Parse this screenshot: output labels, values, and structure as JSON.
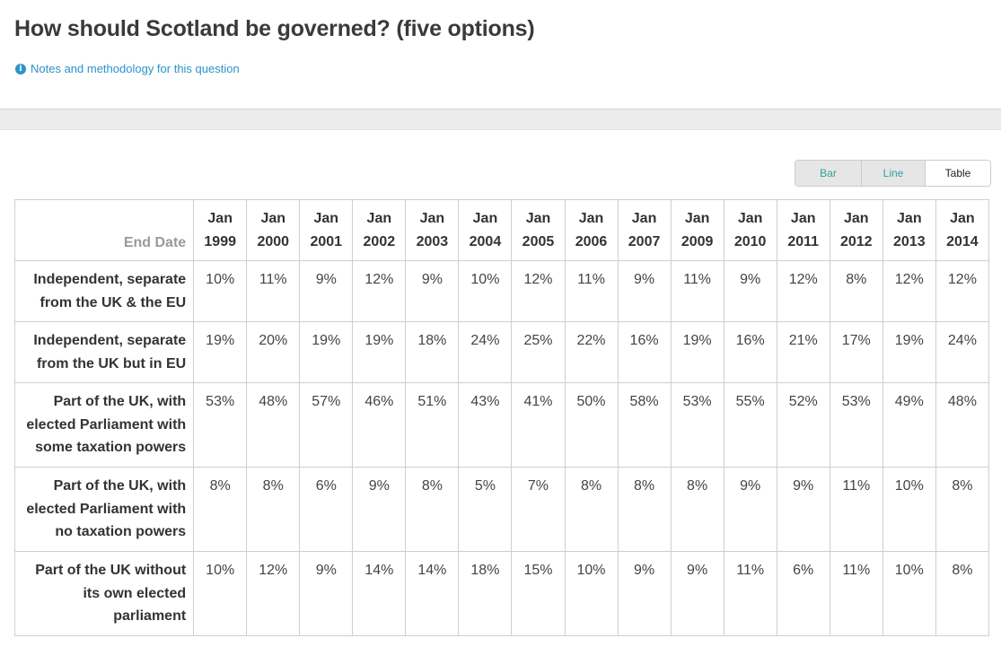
{
  "header": {
    "title": "How should Scotland be governed? (five options)",
    "notes_link": "Notes and methodology for this question",
    "notes_icon": "info-icon"
  },
  "view_toggle": {
    "options": [
      "Bar",
      "Line",
      "Table"
    ],
    "selected": "Table",
    "accent_color": "#2aa4a0"
  },
  "table": {
    "corner_label": "End Date",
    "columns": [
      {
        "month": "Jan",
        "year": "1999"
      },
      {
        "month": "Jan",
        "year": "2000"
      },
      {
        "month": "Jan",
        "year": "2001"
      },
      {
        "month": "Jan",
        "year": "2002"
      },
      {
        "month": "Jan",
        "year": "2003"
      },
      {
        "month": "Jan",
        "year": "2004"
      },
      {
        "month": "Jan",
        "year": "2005"
      },
      {
        "month": "Jan",
        "year": "2006"
      },
      {
        "month": "Jan",
        "year": "2007"
      },
      {
        "month": "Jan",
        "year": "2009"
      },
      {
        "month": "Jan",
        "year": "2010"
      },
      {
        "month": "Jan",
        "year": "2011"
      },
      {
        "month": "Jan",
        "year": "2012"
      },
      {
        "month": "Jan",
        "year": "2013"
      },
      {
        "month": "Jan",
        "year": "2014"
      }
    ],
    "rows": [
      {
        "label": "Independent, separate from the UK & the EU",
        "values": [
          "10%",
          "11%",
          "9%",
          "12%",
          "9%",
          "10%",
          "12%",
          "11%",
          "9%",
          "11%",
          "9%",
          "12%",
          "8%",
          "12%",
          "12%"
        ]
      },
      {
        "label": "Independent, separate from the UK but in EU",
        "values": [
          "19%",
          "20%",
          "19%",
          "19%",
          "18%",
          "24%",
          "25%",
          "22%",
          "16%",
          "19%",
          "16%",
          "21%",
          "17%",
          "19%",
          "24%"
        ]
      },
      {
        "label": "Part of the UK, with elected Parliament with some taxation powers",
        "values": [
          "53%",
          "48%",
          "57%",
          "46%",
          "51%",
          "43%",
          "41%",
          "50%",
          "58%",
          "53%",
          "55%",
          "52%",
          "53%",
          "49%",
          "48%"
        ]
      },
      {
        "label": "Part of the UK, with elected Parliament with no taxation powers",
        "values": [
          "8%",
          "8%",
          "6%",
          "9%",
          "8%",
          "5%",
          "7%",
          "8%",
          "8%",
          "8%",
          "9%",
          "9%",
          "11%",
          "10%",
          "8%"
        ]
      },
      {
        "label": "Part of the UK without its own elected parliament",
        "values": [
          "10%",
          "12%",
          "9%",
          "14%",
          "14%",
          "18%",
          "15%",
          "10%",
          "9%",
          "9%",
          "11%",
          "6%",
          "11%",
          "10%",
          "8%"
        ]
      }
    ]
  }
}
